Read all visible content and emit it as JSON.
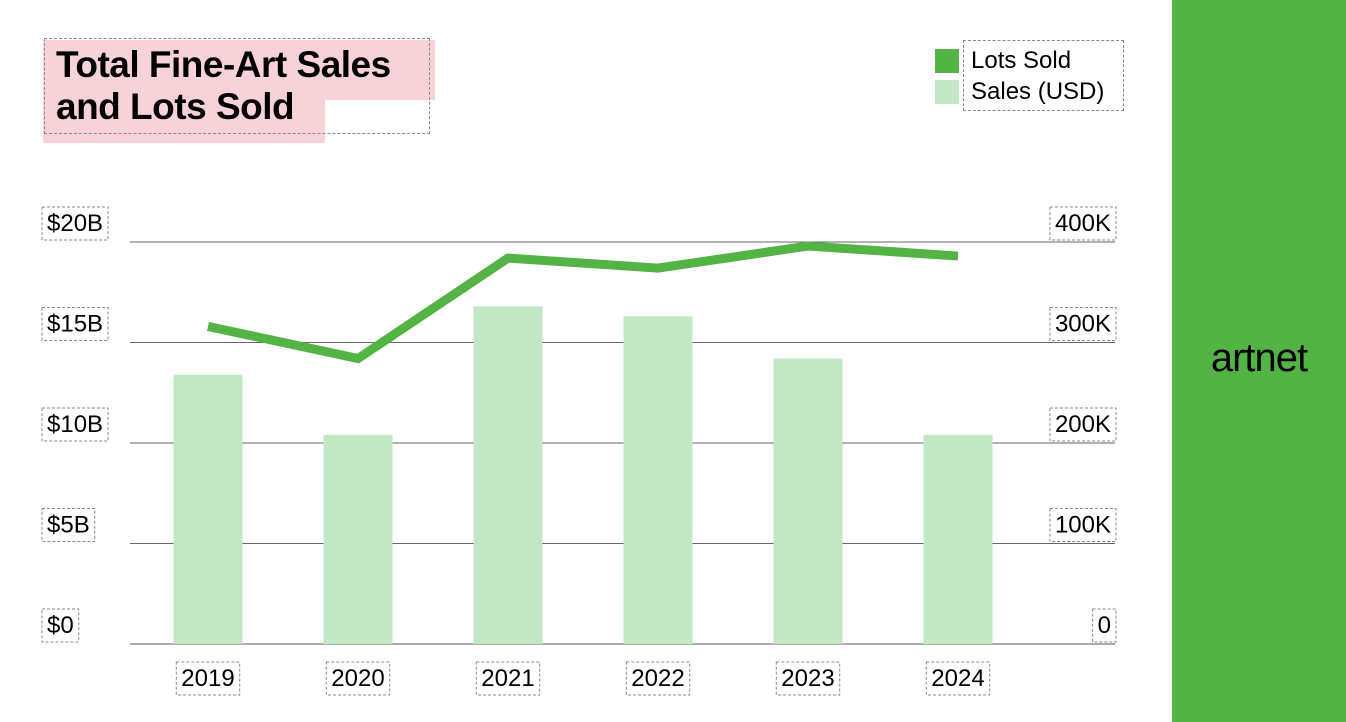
{
  "brand": {
    "logo_text": "artnet",
    "accent_color": "#53b345",
    "highlight_color": "#f8d2d9"
  },
  "chart_data": {
    "type": "bar",
    "title": "Total Fine-Art Sales and Lots Sold",
    "categories": [
      "2019",
      "2020",
      "2021",
      "2022",
      "2023",
      "2024"
    ],
    "series": [
      {
        "name": "Sales (USD)",
        "type": "bar",
        "axis": "left",
        "values": [
          13.4,
          10.4,
          16.8,
          16.3,
          14.2,
          10.4
        ],
        "color": "#c1e8c3"
      },
      {
        "name": "Lots Sold",
        "type": "line",
        "axis": "right",
        "values": [
          316000,
          284000,
          384000,
          374000,
          396000,
          386000
        ],
        "color": "#53b345"
      }
    ],
    "left_axis": {
      "ticks": [
        "$0",
        "$5B",
        "$10B",
        "$15B",
        "$20B"
      ],
      "range": [
        0,
        20
      ]
    },
    "right_axis": {
      "ticks": [
        "0",
        "100K",
        "200K",
        "300K",
        "400K"
      ],
      "range": [
        0,
        400000
      ]
    },
    "grid": true,
    "legend_position": "top-right"
  }
}
